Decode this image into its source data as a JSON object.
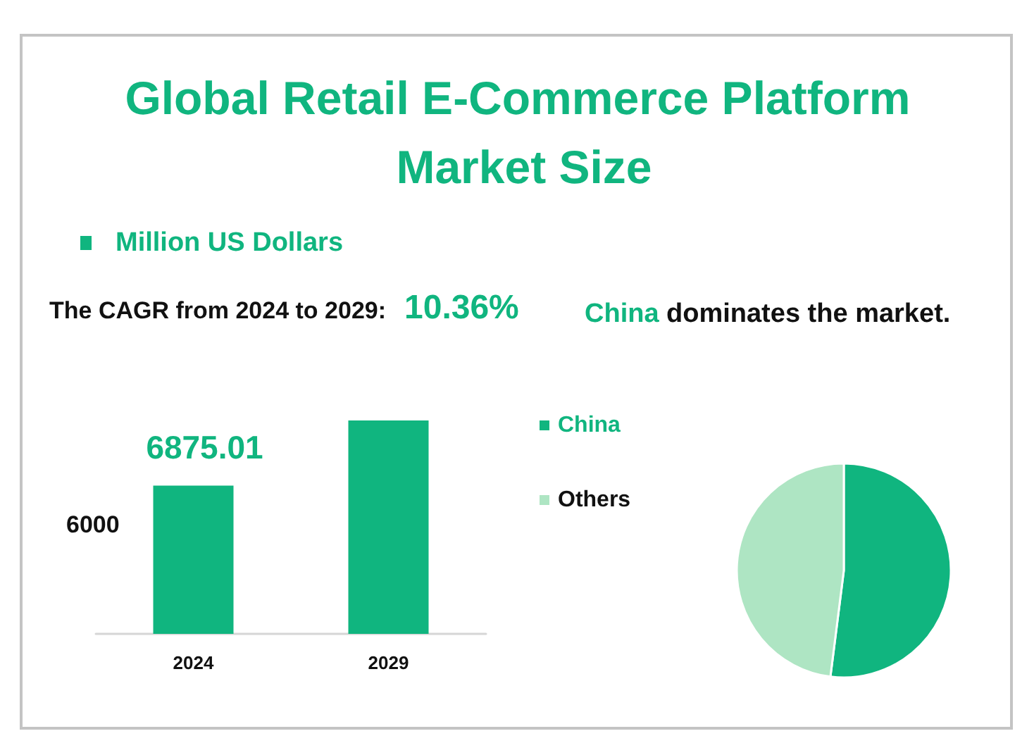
{
  "chart_data": [
    {
      "type": "bar",
      "title": "Global Retail E-Commerce Platform Market Size",
      "categories": [
        "2024",
        "2029"
      ],
      "series": [
        {
          "name": "Million US Dollars",
          "color": "#10b57f",
          "values": [
            6875.01,
            9900
          ],
          "value_labels": [
            "6875.01",
            null
          ]
        }
      ],
      "ylim": [
        0,
        10000
      ],
      "legend": "top left",
      "annotations": [
        "The CAGR from 2024 to 2029:",
        "10.36%",
        "6000"
      ]
    },
    {
      "type": "pie",
      "categories": [
        "China",
        "Others"
      ],
      "values": [
        52,
        48
      ],
      "colors": [
        "#10b57f",
        "#aee5c3"
      ],
      "legend": "left",
      "annotations": [
        "China",
        "dominates the market."
      ]
    }
  ]
}
